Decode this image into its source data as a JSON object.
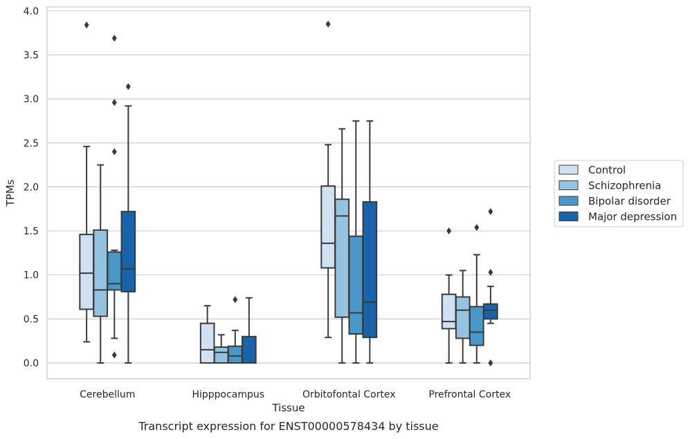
{
  "chart_data": {
    "type": "boxplot",
    "caption": "Transcript expression for ENST00000578434 by tissue",
    "xlabel": "Tissue",
    "ylabel": "TPMs",
    "ylim": [
      -0.18,
      4.05
    ],
    "yticks": [
      "0.0",
      "0.5",
      "1.0",
      "1.5",
      "2.0",
      "2.5",
      "3.0",
      "3.5",
      "4.0"
    ],
    "grid": "horizontal",
    "legend_position": "outside-right",
    "categories": [
      "Cerebellum",
      "Hipppocampus",
      "Orbitofontal Cortex",
      "Prefrontal Cortex"
    ],
    "series": [
      {
        "name": "Control",
        "color": "#d0e1f2",
        "boxes": [
          {
            "whislo": 0.24,
            "q1": 0.61,
            "med": 1.02,
            "q3": 1.46,
            "whishi": 2.46,
            "fliers": [
              3.84
            ]
          },
          {
            "whislo": 0.0,
            "q1": 0.0,
            "med": 0.15,
            "q3": 0.45,
            "whishi": 0.65,
            "fliers": []
          },
          {
            "whislo": 0.29,
            "q1": 1.08,
            "med": 1.36,
            "q3": 2.01,
            "whishi": 2.48,
            "fliers": [
              3.85
            ]
          },
          {
            "whislo": 0.0,
            "q1": 0.39,
            "med": 0.47,
            "q3": 0.78,
            "whishi": 1.0,
            "fliers": [
              1.5
            ]
          }
        ]
      },
      {
        "name": "Schizophrenia",
        "color": "#94c4df",
        "boxes": [
          {
            "whislo": 0.0,
            "q1": 0.53,
            "med": 0.83,
            "q3": 1.51,
            "whishi": 2.25,
            "fliers": []
          },
          {
            "whislo": 0.0,
            "q1": 0.0,
            "med": 0.12,
            "q3": 0.18,
            "whishi": 0.32,
            "fliers": []
          },
          {
            "whislo": 0.0,
            "q1": 0.52,
            "med": 1.67,
            "q3": 1.86,
            "whishi": 2.66,
            "fliers": []
          },
          {
            "whislo": 0.0,
            "q1": 0.28,
            "med": 0.6,
            "q3": 0.75,
            "whishi": 1.05,
            "fliers": []
          }
        ]
      },
      {
        "name": "Bipolar disorder",
        "color": "#4a98c9",
        "boxes": [
          {
            "whislo": 0.28,
            "q1": 0.83,
            "med": 0.9,
            "q3": 1.26,
            "whishi": 1.28,
            "fliers": [
              0.09,
              2.4,
              2.96,
              3.69
            ]
          },
          {
            "whislo": 0.0,
            "q1": 0.0,
            "med": 0.08,
            "q3": 0.19,
            "whishi": 0.37,
            "fliers": [
              0.72
            ]
          },
          {
            "whislo": 0.0,
            "q1": 0.33,
            "med": 0.57,
            "q3": 1.44,
            "whishi": 2.75,
            "fliers": []
          },
          {
            "whislo": 0.0,
            "q1": 0.2,
            "med": 0.35,
            "q3": 0.64,
            "whishi": 1.23,
            "fliers": [
              1.54
            ]
          }
        ]
      },
      {
        "name": "Major depression",
        "color": "#1764ab",
        "boxes": [
          {
            "whislo": 0.0,
            "q1": 0.81,
            "med": 1.07,
            "q3": 1.72,
            "whishi": 2.92,
            "fliers": [
              3.14
            ]
          },
          {
            "whislo": 0.0,
            "q1": 0.0,
            "med": 0.0,
            "q3": 0.3,
            "whishi": 0.74,
            "fliers": []
          },
          {
            "whislo": 0.0,
            "q1": 0.29,
            "med": 0.69,
            "q3": 1.83,
            "whishi": 2.75,
            "fliers": []
          },
          {
            "whislo": 0.45,
            "q1": 0.5,
            "med": 0.6,
            "q3": 0.67,
            "whishi": 0.87,
            "fliers": [
              0.0,
              1.03,
              1.72
            ]
          }
        ]
      }
    ]
  }
}
